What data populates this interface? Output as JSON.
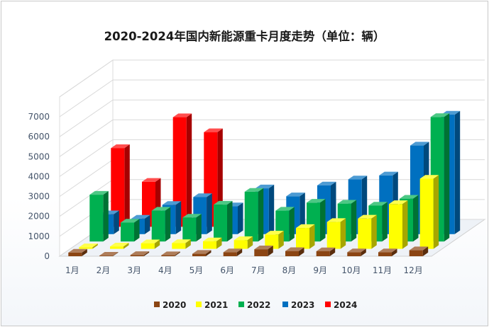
{
  "title": "2020-2024年国内新能源重卡月度走势（单位：辆）",
  "chart_data": {
    "type": "bar",
    "subtype": "3d-depth-bar",
    "title": "2020-2024年国内新能源重卡月度走势（单位：辆）",
    "categories": [
      "1月",
      "2月",
      "3月",
      "4月",
      "5月",
      "6月",
      "7月",
      "8月",
      "9月",
      "10月",
      "11月",
      "12月"
    ],
    "yticks": [
      0,
      1000,
      2000,
      3000,
      4000,
      5000,
      6000,
      7000
    ],
    "ylim": [
      0,
      8000
    ],
    "grid": true,
    "legend_position": "bottom",
    "series": [
      {
        "name": "2020",
        "color": "#8B4513",
        "values": [
          180,
          30,
          60,
          50,
          120,
          200,
          350,
          260,
          250,
          200,
          200,
          300
        ]
      },
      {
        "name": "2021",
        "color": "#FFFF00",
        "values": [
          80,
          120,
          280,
          290,
          380,
          440,
          720,
          1050,
          1350,
          1520,
          2250,
          3520
        ]
      },
      {
        "name": "2022",
        "color": "#00B050",
        "values": [
          2350,
          950,
          1550,
          1200,
          1850,
          2500,
          1550,
          1950,
          1900,
          1800,
          2150,
          6250
        ]
      },
      {
        "name": "2023",
        "color": "#0070C0",
        "values": [
          1000,
          780,
          1470,
          1860,
          1400,
          2300,
          1900,
          2450,
          2750,
          2950,
          4450,
          6000
        ]
      },
      {
        "name": "2024",
        "color": "#FF0000",
        "values": [
          3950,
          2260,
          5500,
          4750,
          null,
          null,
          null,
          null,
          null,
          null,
          null,
          null
        ]
      }
    ]
  }
}
